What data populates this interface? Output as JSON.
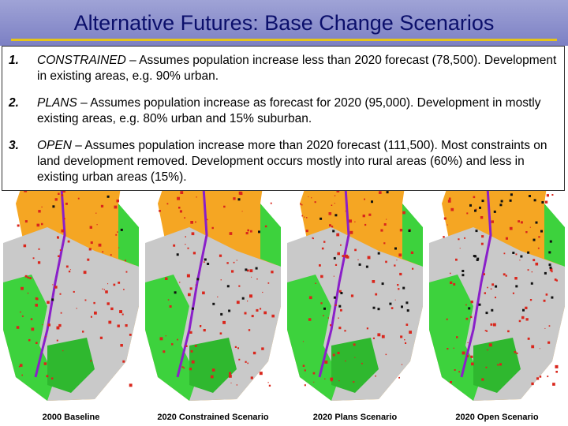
{
  "slide": {
    "title": "Alternative Futures: Base Change Scenarios"
  },
  "scenarios": [
    {
      "number": "1.",
      "name": "CONSTRAINED",
      "dash": " – ",
      "text": "Assumes population increase less than 2020 forecast (78,500).  Development in existing areas, e.g. 90% urban."
    },
    {
      "number": "2.",
      "name": "PLANS",
      "dash": " – ",
      "text": "Assumes population increase as forecast for 2020 (95,000).  Development in mostly existing areas, e.g. 80% urban and 15% suburban."
    },
    {
      "number": "3.",
      "name": "OPEN",
      "dash": " – ",
      "text": "Assumes population increase more than 2020 forecast (111,500).  Most constraints on land development removed.  Development occurs mostly into rural areas (60%) and less in existing urban areas (15%)."
    }
  ],
  "maps": [
    {
      "caption": "2000 Baseline"
    },
    {
      "caption": "2020 Constrained Scenario"
    },
    {
      "caption": "2020 Plans Scenario"
    },
    {
      "caption": "2020 Open Scenario"
    }
  ],
  "colors": {
    "title_bg": "#8a8ecb",
    "title_text": "#0b0f6b",
    "title_rule": "#e6c419",
    "forest": "#3dd23d",
    "agriculture": "#f5a623",
    "urban_gray": "#c9c9c9",
    "development_red": "#d9261c",
    "river_purple": "#8a1fc9",
    "new_development_black": "#111111"
  }
}
